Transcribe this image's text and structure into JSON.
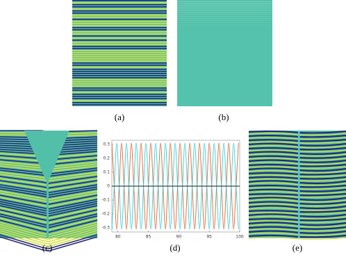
{
  "figure": {
    "labels": [
      "(a)",
      "(b)",
      "(c)",
      "(d)",
      "(e)"
    ]
  },
  "chart_data": {
    "type": "line",
    "x": [
      79,
      79.4,
      79.8,
      80.2,
      80.6,
      81,
      81.4,
      81.8,
      82.2,
      82.6,
      83,
      83.4,
      83.8,
      84.2,
      84.6,
      85,
      85.4,
      85.8,
      86.2,
      86.6,
      87,
      87.4,
      87.8,
      88.2,
      88.6,
      89,
      89.4,
      89.8,
      90.2,
      90.6,
      91,
      91.4,
      91.8,
      92.2,
      92.6,
      93,
      93.4,
      93.8,
      94.2,
      94.6,
      95,
      95.4,
      95.8,
      96.2,
      96.6,
      97,
      97.4,
      97.8,
      98.2,
      98.6,
      99,
      99.4,
      99.8
    ],
    "series": [
      {
        "color": "#e8602c",
        "values": [
          0.31,
          0,
          -0.31,
          0,
          0.31,
          0,
          -0.31,
          0,
          0.31,
          0,
          -0.31,
          0,
          0.31,
          0,
          -0.31,
          0,
          0.31,
          0,
          -0.31,
          0,
          0.31,
          0,
          -0.31,
          0,
          0.31,
          0,
          -0.31,
          0,
          0.31,
          0,
          -0.31,
          0,
          0.31,
          0,
          -0.31,
          0,
          0.31,
          0,
          -0.31,
          0,
          0.31,
          0,
          -0.31,
          0,
          0.31,
          0,
          -0.31,
          0,
          0.31,
          0,
          -0.31,
          0,
          0.31
        ]
      },
      {
        "color": "#2ad2e0",
        "values": [
          -0.31,
          0,
          0.31,
          0,
          -0.31,
          0,
          0.31,
          0,
          -0.31,
          0,
          0.31,
          0,
          -0.31,
          0,
          0.31,
          0,
          -0.31,
          0,
          0.31,
          0,
          -0.31,
          0,
          0.31,
          0,
          -0.31,
          0,
          0.31,
          0,
          -0.31,
          0,
          0.31,
          0,
          -0.31,
          0,
          0.31,
          0,
          -0.31,
          0,
          0.31,
          0,
          -0.31,
          0,
          0.31,
          0,
          -0.31,
          0,
          0.31,
          0,
          -0.31,
          0,
          0.31,
          0,
          -0.31
        ]
      }
    ],
    "reference_line": 0,
    "xlim": [
      79,
      100
    ],
    "ylim": [
      -0.33,
      0.33
    ],
    "xticks": [
      80,
      85,
      90,
      95,
      100
    ],
    "yticks": [
      0.3,
      0.2,
      0.1,
      0,
      -0.1,
      -0.2,
      -0.3
    ]
  }
}
